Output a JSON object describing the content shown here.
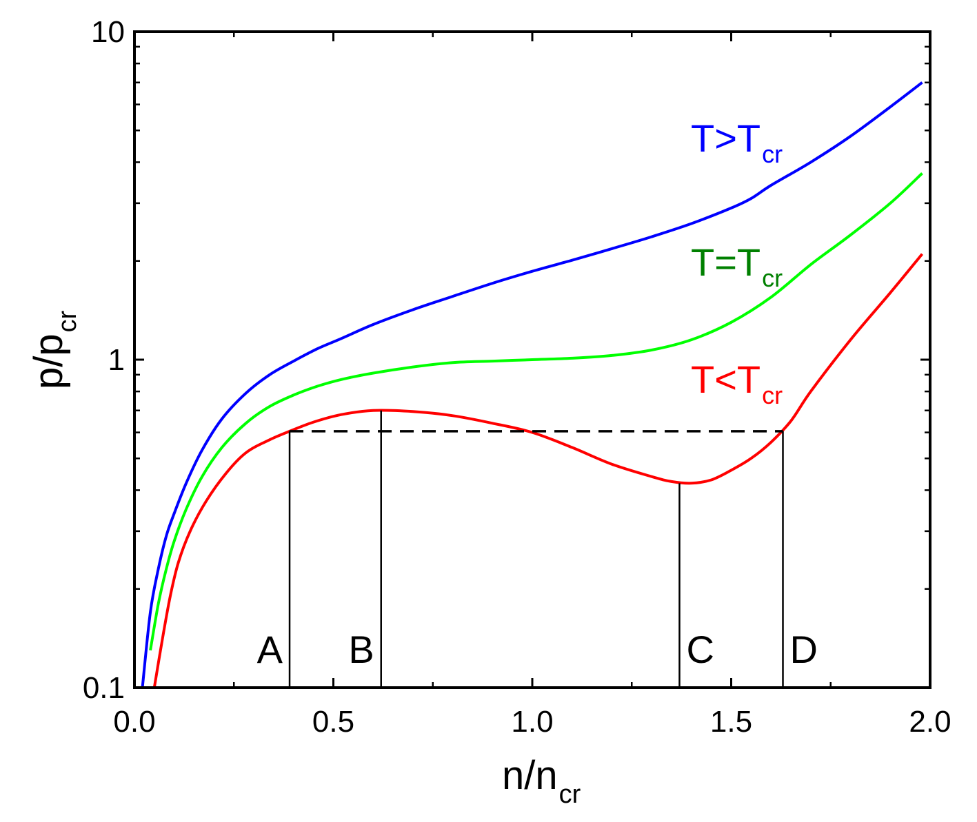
{
  "chart_data": {
    "type": "line",
    "xlabel": {
      "main": "n/n",
      "sub": "cr"
    },
    "ylabel": {
      "main": "p/p",
      "sub": "cr"
    },
    "xlim": [
      0.0,
      2.0
    ],
    "ylim": [
      0.1,
      10
    ],
    "yscale": "log",
    "xticks": [
      "0.0",
      "0.5",
      "1.0",
      "1.5",
      "2.0"
    ],
    "xtick_values": [
      0.0,
      0.5,
      1.0,
      1.5,
      2.0
    ],
    "yticks": [
      "0.1",
      "1",
      "10"
    ],
    "ytick_values": [
      0.1,
      1,
      10
    ],
    "series": [
      {
        "name": "T>T_cr",
        "label_main": "T>T",
        "label_sub": "cr",
        "color": "#0000ff",
        "x": [
          0.02,
          0.04,
          0.06,
          0.08,
          0.1,
          0.13,
          0.17,
          0.22,
          0.28,
          0.34,
          0.4,
          0.46,
          0.52,
          0.6,
          0.7,
          0.8,
          0.9,
          1.0,
          1.1,
          1.2,
          1.3,
          1.4,
          1.5,
          1.55,
          1.6,
          1.7,
          1.8,
          1.9,
          1.98
        ],
        "y": [
          0.1,
          0.17,
          0.23,
          0.29,
          0.34,
          0.42,
          0.53,
          0.66,
          0.79,
          0.9,
          0.99,
          1.08,
          1.16,
          1.28,
          1.42,
          1.56,
          1.71,
          1.86,
          2.01,
          2.18,
          2.37,
          2.6,
          2.9,
          3.1,
          3.4,
          4.0,
          4.8,
          5.9,
          7.0
        ]
      },
      {
        "name": "T=T_cr",
        "label_main": "T=T",
        "label_sub": "cr",
        "color": "#00ff00",
        "x": [
          0.04,
          0.06,
          0.08,
          0.1,
          0.13,
          0.17,
          0.22,
          0.28,
          0.34,
          0.4,
          0.46,
          0.52,
          0.6,
          0.7,
          0.8,
          0.9,
          1.0,
          1.1,
          1.2,
          1.3,
          1.4,
          1.5,
          1.6,
          1.7,
          1.8,
          1.9,
          1.98
        ],
        "y": [
          0.13,
          0.18,
          0.23,
          0.28,
          0.35,
          0.44,
          0.54,
          0.64,
          0.72,
          0.78,
          0.83,
          0.87,
          0.91,
          0.95,
          0.98,
          0.99,
          1.0,
          1.01,
          1.03,
          1.07,
          1.15,
          1.3,
          1.55,
          1.95,
          2.4,
          3.0,
          3.7
        ]
      },
      {
        "name": "T<T_cr",
        "label_main": "T<T",
        "label_sub": "cr",
        "color": "#ff0000",
        "x": [
          0.05,
          0.07,
          0.09,
          0.11,
          0.14,
          0.18,
          0.23,
          0.28,
          0.34,
          0.39,
          0.45,
          0.52,
          0.6,
          0.7,
          0.8,
          0.9,
          1.0,
          1.1,
          1.2,
          1.3,
          1.35,
          1.4,
          1.45,
          1.5,
          1.55,
          1.6,
          1.65,
          1.7,
          1.8,
          1.9,
          1.98
        ],
        "y": [
          0.1,
          0.14,
          0.19,
          0.24,
          0.3,
          0.37,
          0.45,
          0.52,
          0.57,
          0.605,
          0.645,
          0.68,
          0.7,
          0.695,
          0.675,
          0.64,
          0.6,
          0.54,
          0.48,
          0.44,
          0.425,
          0.42,
          0.43,
          0.46,
          0.5,
          0.56,
          0.65,
          0.8,
          1.15,
          1.6,
          2.1
        ]
      }
    ],
    "tie_line": {
      "style": "dashed",
      "color": "#000000",
      "y": 0.605,
      "x_start": 0.39,
      "x_end": 1.63
    },
    "markers": [
      {
        "label": "A",
        "x": 0.39,
        "y": 0.605
      },
      {
        "label": "B",
        "x": 0.62,
        "y": 0.7
      },
      {
        "label": "C",
        "x": 1.37,
        "y": 0.42
      },
      {
        "label": "D",
        "x": 1.63,
        "y": 0.605
      }
    ]
  }
}
